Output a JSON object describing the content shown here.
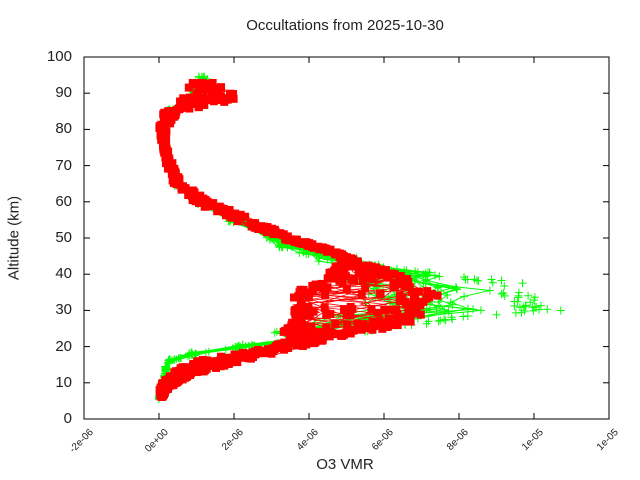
{
  "chart_data": {
    "type": "line",
    "title": "Occultations from 2025-10-30",
    "xlabel": "O3 VMR",
    "ylabel": "Altitude (km)",
    "xlim": [
      -2e-06,
      1.2e-05
    ],
    "ylim": [
      0,
      100
    ],
    "x_tick_values": [
      -2e-06,
      0,
      2e-06,
      4e-06,
      6e-06,
      8e-06,
      1e-05,
      1.2e-05
    ],
    "x_tick_labels": [
      "-2e-06",
      "0e+00",
      "2e-06",
      "4e-06",
      "6e-06",
      "8e-06",
      "1e-05",
      "1e-05"
    ],
    "y_tick_values": [
      0,
      10,
      20,
      30,
      40,
      50,
      60,
      70,
      80,
      90,
      100
    ],
    "y_tick_labels": [
      "0",
      "10",
      "20",
      "30",
      "40",
      "50",
      "60",
      "70",
      "80",
      "90",
      "100"
    ],
    "grid": false,
    "legend": "none",
    "series": [
      {
        "name": "profiles-green",
        "marker": "plus",
        "color": "#00ff00",
        "altitude_km": [
          6,
          10,
          14,
          16,
          18,
          20,
          22,
          24,
          26,
          28,
          30,
          32,
          34,
          36,
          38,
          40,
          42,
          44,
          46,
          48,
          50,
          55,
          60,
          65,
          70,
          75,
          80,
          85,
          90,
          94
        ],
        "vmr_envelope_max": [
          0.0,
          1e-07,
          2e-07,
          3e-07,
          1e-06,
          2.5e-06,
          4e-06,
          5.5e-06,
          7e-06,
          8.5e-06,
          1.08e-05,
          1.02e-05,
          1e-05,
          1.05e-05,
          9.5e-06,
          7.5e-06,
          6e-06,
          5.3e-06,
          4.6e-06,
          4e-06,
          3.4e-06,
          2.3e-06,
          1.2e-06,
          5e-07,
          3e-07,
          2e-07,
          1e-07,
          3e-07,
          1.1e-06,
          1.3e-06
        ]
      },
      {
        "name": "profiles-red",
        "marker": "square",
        "color": "#ff0000",
        "altitude_km": [
          6,
          8,
          10,
          12,
          14,
          16,
          18,
          20,
          22,
          24,
          26,
          28,
          30,
          32,
          34,
          36,
          38,
          40,
          42,
          44,
          46,
          48,
          50,
          55,
          60,
          65,
          70,
          75,
          80,
          85,
          88,
          90,
          93
        ],
        "vmr_min": [
          0.0,
          0.0,
          1e-07,
          3e-07,
          5e-07,
          1e-06,
          2e-06,
          3e-06,
          3.5e-06,
          3.3e-06,
          3.5e-06,
          3.6e-06,
          3.6e-06,
          3.5e-06,
          3.6e-06,
          3.8e-06,
          4.2e-06,
          4.5e-06,
          4.7e-06,
          5e-06,
          4.5e-06,
          3.9e-06,
          3.2e-06,
          2e-06,
          9e-07,
          4e-07,
          2e-07,
          1e-07,
          0.0,
          1e-07,
          6e-07,
          7e-07,
          8e-07
        ],
        "vmr_max": [
          1e-07,
          2e-07,
          5e-07,
          8e-07,
          1.5e-06,
          2.2e-06,
          3e-06,
          3.8e-06,
          4.5e-06,
          5.5e-06,
          6.5e-06,
          7e-06,
          7e-06,
          7e-06,
          7.5e-06,
          7e-06,
          6.8e-06,
          6.5e-06,
          5.8e-06,
          5.2e-06,
          4.8e-06,
          4.2e-06,
          3.6e-06,
          2.5e-06,
          1.4e-06,
          6e-07,
          4e-07,
          2e-07,
          2e-07,
          5e-07,
          2e-06,
          2e-06,
          1.4e-06
        ]
      }
    ]
  }
}
